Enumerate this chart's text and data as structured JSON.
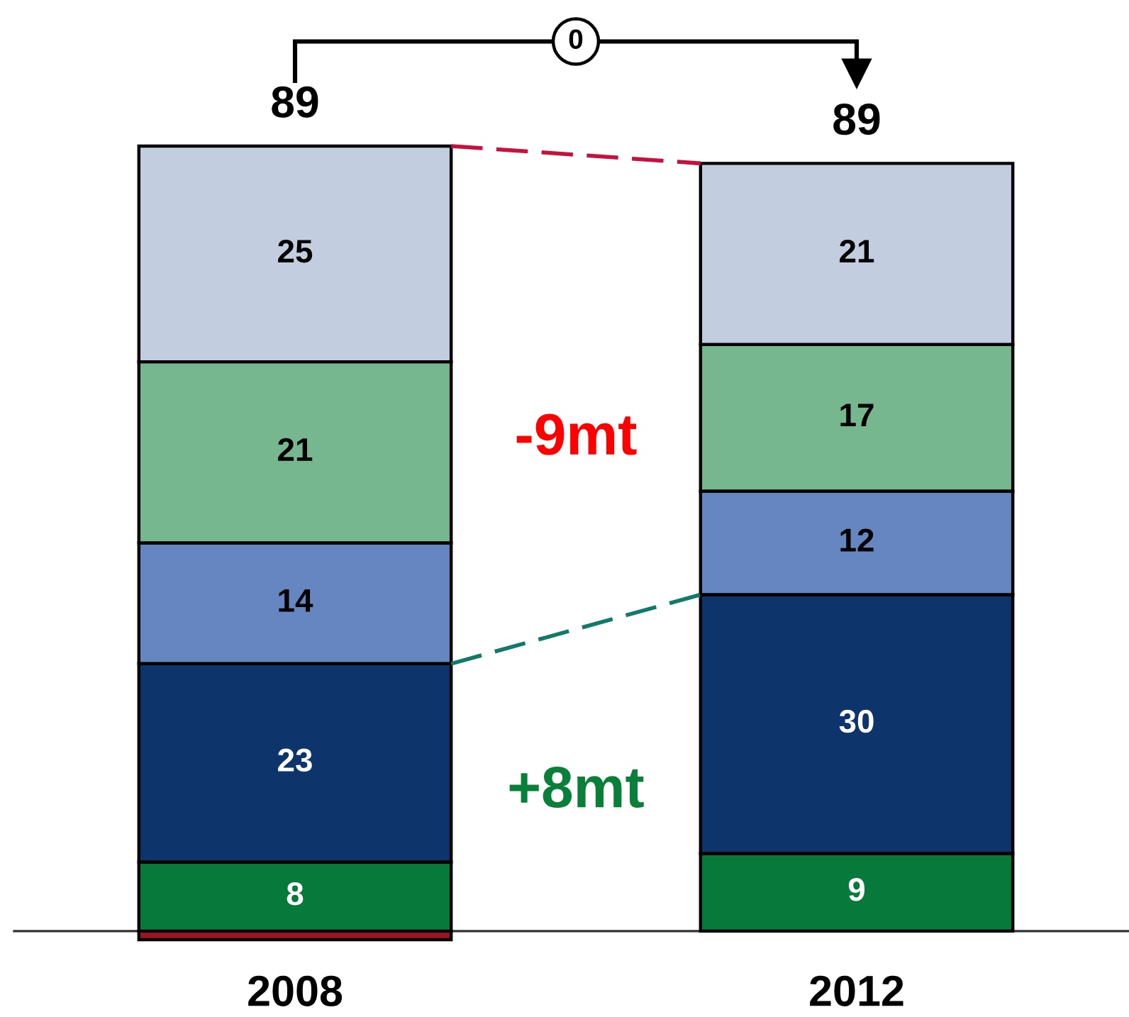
{
  "chart_data": {
    "type": "bar",
    "stacked": true,
    "categories": [
      "2008",
      "2012"
    ],
    "series": [
      {
        "color": "#9b1426",
        "values": [
          -1,
          null
        ],
        "value_labels": [
          null,
          null
        ]
      },
      {
        "color": "#077a3b",
        "values": [
          8,
          9
        ],
        "value_labels": [
          "8",
          "9"
        ]
      },
      {
        "color": "#0e356b",
        "values": [
          23,
          30
        ],
        "value_labels": [
          "23",
          "30"
        ]
      },
      {
        "color": "#6586c1",
        "values": [
          14,
          12
        ],
        "value_labels": [
          "14",
          "12"
        ]
      },
      {
        "color": "#77b790",
        "values": [
          21,
          17
        ],
        "value_labels": [
          "21",
          "17"
        ]
      },
      {
        "color": "#c3cde0",
        "values": [
          25,
          21
        ],
        "value_labels": [
          "25",
          "21"
        ]
      }
    ],
    "totals": [
      "89",
      "89"
    ],
    "annotations": [
      "0",
      "-9mt",
      "+8mt"
    ]
  }
}
